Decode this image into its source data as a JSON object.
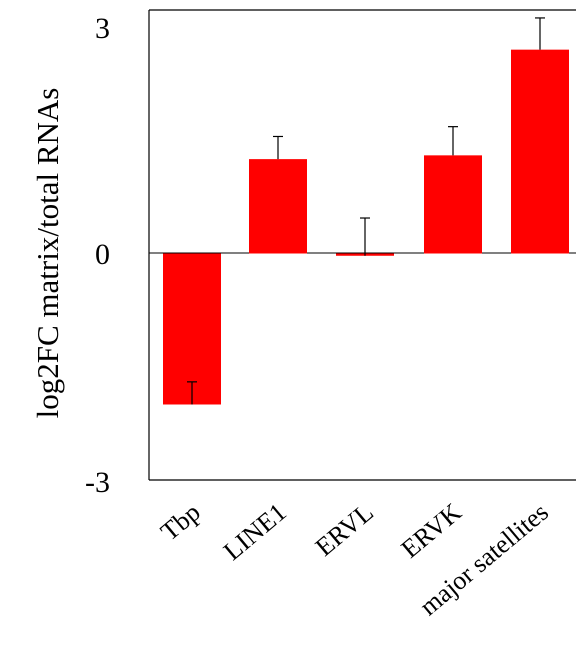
{
  "chart_data": {
    "type": "bar",
    "categories": [
      "Tbp",
      "LINE1",
      "ERVL",
      "ERVK",
      "major satellites"
    ],
    "values": [
      -2.0,
      1.25,
      -0.03,
      1.3,
      2.7
    ],
    "error_bars": [
      0.3,
      0.3,
      0.5,
      0.38,
      0.42
    ],
    "ylabel": "log2FC matrix/total RNAs",
    "ylim": [
      -3,
      3
    ],
    "yticks": [
      3,
      0,
      -3
    ],
    "ytick_labels": [
      "3",
      "0",
      "-3"
    ],
    "bar_color": "#ff0000",
    "error_color": "#000000",
    "grid": false,
    "zero_line": true
  }
}
